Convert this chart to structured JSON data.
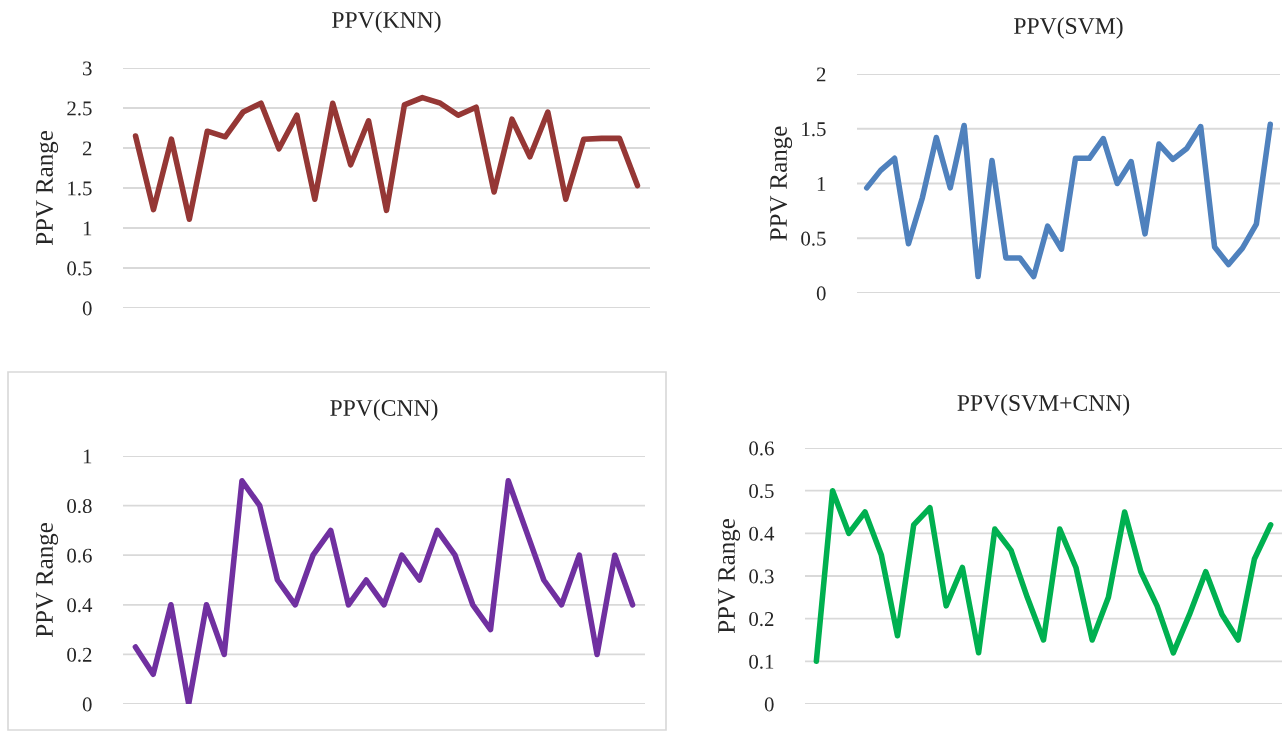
{
  "chart_data": [
    {
      "type": "line",
      "title": "PPV(KNN)",
      "ylabel": "PPV Range",
      "categories": [
        null,
        null,
        null,
        null,
        null,
        null,
        null,
        null,
        null,
        null,
        null,
        null,
        null,
        null,
        null,
        null,
        null,
        null,
        null,
        null,
        null,
        null,
        null,
        null,
        null,
        null,
        null,
        null,
        null
      ],
      "series": [
        {
          "color": "#953735",
          "values": [
            2.15,
            1.23,
            2.11,
            1.11,
            2.21,
            2.14,
            2.45,
            2.56,
            1.99,
            2.41,
            1.36,
            2.56,
            1.79,
            2.34,
            1.22,
            2.54,
            2.63,
            2.56,
            2.41,
            2.51,
            1.45,
            2.36,
            1.89,
            2.45,
            1.36,
            2.11,
            2.12,
            2.12,
            1.53
          ]
        }
      ],
      "ylim": [
        0,
        3
      ],
      "yticks": [
        0,
        0.5,
        1,
        1.5,
        2,
        2.5,
        3
      ],
      "grid": "y",
      "tick_labels": "y"
    },
    {
      "type": "line",
      "title": "PPV(SVM)",
      "ylabel": "PPV Range",
      "categories": [
        null,
        null,
        null,
        null,
        null,
        null,
        null,
        null,
        null,
        null,
        null,
        null,
        null,
        null,
        null,
        null,
        null,
        null,
        null,
        null,
        null,
        null,
        null,
        null,
        null,
        null,
        null,
        null,
        null,
        null
      ],
      "series": [
        {
          "color": "#4f81bd",
          "values": [
            0.96,
            1.12,
            1.23,
            0.45,
            0.87,
            1.42,
            0.96,
            1.53,
            0.15,
            1.21,
            0.32,
            0.32,
            0.15,
            0.61,
            0.4,
            1.23,
            1.23,
            1.41,
            1.0,
            1.2,
            0.54,
            1.36,
            1.22,
            1.32,
            1.52,
            0.42,
            0.26,
            0.41,
            0.63,
            1.54
          ]
        }
      ],
      "ylim": [
        0,
        2
      ],
      "yticks": [
        0,
        0.5,
        1,
        1.5,
        2
      ],
      "grid": "y",
      "tick_labels": "y"
    },
    {
      "type": "line",
      "title": "PPV(CNN)",
      "ylabel": "PPV Range",
      "categories": [
        null,
        null,
        null,
        null,
        null,
        null,
        null,
        null,
        null,
        null,
        null,
        null,
        null,
        null,
        null,
        null,
        null,
        null,
        null,
        null,
        null,
        null,
        null,
        null,
        null,
        null,
        null,
        null,
        null
      ],
      "series": [
        {
          "color": "#7030a0",
          "values": [
            0.23,
            0.12,
            0.4,
            0,
            0.4,
            0.2,
            0.9,
            0.8,
            0.5,
            0.4,
            0.6,
            0.7,
            0.4,
            0.5,
            0.4,
            0.6,
            0.5,
            0.7,
            0.6,
            0.4,
            0.3,
            0.9,
            0.7,
            0.5,
            0.4,
            0.6,
            0.2,
            0.6,
            0.4
          ]
        }
      ],
      "ylim": [
        0,
        1
      ],
      "yticks": [
        0,
        0.2,
        0.4,
        0.6,
        0.8,
        1
      ],
      "grid": "y",
      "tick_labels": "y"
    },
    {
      "type": "line",
      "title": "PPV(SVM+CNN)",
      "ylabel": "PPV Range",
      "categories": [
        null,
        null,
        null,
        null,
        null,
        null,
        null,
        null,
        null,
        null,
        null,
        null,
        null,
        null,
        null,
        null,
        null,
        null,
        null,
        null,
        null,
        null,
        null,
        null,
        null,
        null,
        null,
        null,
        null
      ],
      "series": [
        {
          "color": "#00b050",
          "values": [
            0.1,
            0.5,
            0.4,
            0.45,
            0.35,
            0.16,
            0.42,
            0.46,
            0.23,
            0.32,
            0.12,
            0.41,
            0.36,
            0.25,
            0.15,
            0.41,
            0.32,
            0.15,
            0.25,
            0.45,
            0.31,
            0.23,
            0.12,
            0.21,
            0.31,
            0.21,
            0.15,
            0.34,
            0.42
          ]
        }
      ],
      "ylim": [
        0,
        0.6
      ],
      "yticks": [
        0,
        0.1,
        0.2,
        0.3,
        0.4,
        0.5,
        0.6
      ],
      "grid": "y",
      "tick_labels": "y"
    }
  ]
}
